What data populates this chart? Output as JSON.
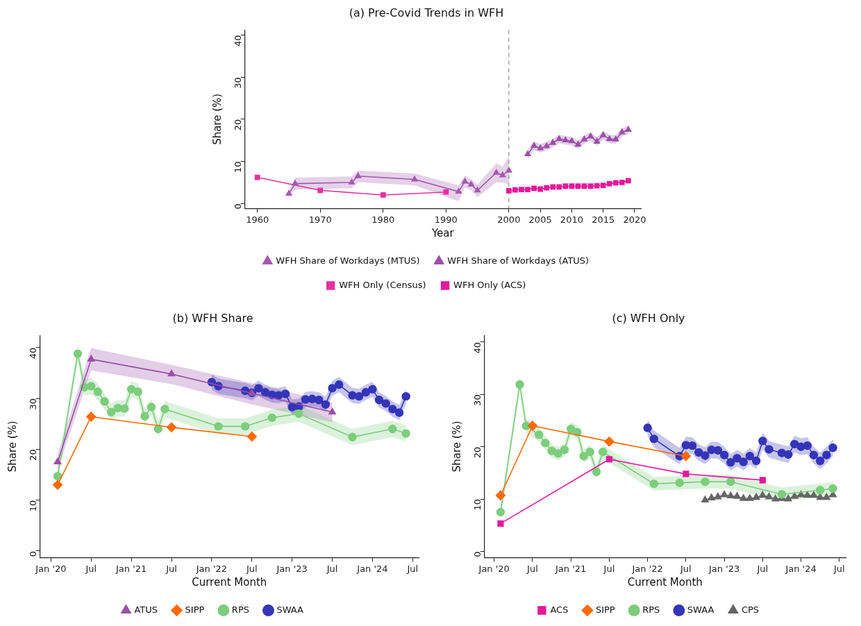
{
  "chart_data": [
    {
      "type": "line",
      "title": "(a) Pre-Covid Trends in WFH",
      "xlabel": "Year",
      "ylabel": "Share (%)",
      "xlim": [
        1958,
        2021
      ],
      "xticks": [
        1960,
        1970,
        1980,
        1990,
        2000,
        2005,
        2010,
        2015,
        2020
      ],
      "ylim": [
        -1.2,
        41.2
      ],
      "yticks": [
        0,
        10,
        20,
        30,
        40
      ],
      "grid": false,
      "legend": "bottom",
      "ref_lines": [
        {
          "axis": "x",
          "value": 2000,
          "color": "#999999",
          "line_style": "dashed"
        }
      ],
      "series": [
        {
          "name": "WFH Share of Workdays (MTUS)",
          "color": "#a35aae",
          "marker": "triangle",
          "x": [
            1965,
            1966,
            1975,
            1976,
            1985,
            1992,
            1993,
            1994,
            1995,
            1998,
            1999,
            2000
          ],
          "values": [
            2.3,
            4.7,
            5.0,
            6.5,
            5.7,
            2.8,
            5.2,
            4.5,
            3.1,
            7.3,
            6.7,
            7.8
          ],
          "lower": [
            1.5,
            3.3,
            3.6,
            5.0,
            4.3,
            0.5,
            3.8,
            3.2,
            1.5,
            5.0,
            5.0,
            4.5
          ],
          "upper": [
            3.1,
            6.1,
            6.4,
            7.8,
            7.1,
            4.3,
            6.6,
            5.8,
            4.5,
            9.5,
            8.7,
            11.2
          ]
        },
        {
          "name": "WFH Share of Workdays (ATUS)",
          "color": "#9b4fa8",
          "marker": "triangle",
          "x": [
            2003,
            2004,
            2005,
            2006,
            2007,
            2008,
            2009,
            2010,
            2011,
            2012,
            2013,
            2014,
            2015,
            2016,
            2017,
            2018,
            2019
          ],
          "values": [
            11.7,
            13.7,
            13.1,
            13.6,
            14.4,
            15.3,
            15.0,
            14.8,
            14.0,
            15.2,
            15.9,
            14.7,
            16.2,
            15.3,
            15.2,
            16.9,
            17.5
          ],
          "lower": [
            10.7,
            12.7,
            12.1,
            12.6,
            13.4,
            14.3,
            14.0,
            13.8,
            13.0,
            14.2,
            14.9,
            13.7,
            15.2,
            14.3,
            14.2,
            15.9,
            16.5
          ],
          "upper": [
            12.7,
            14.7,
            14.1,
            14.6,
            15.4,
            16.3,
            16.0,
            15.8,
            15.0,
            16.2,
            16.9,
            15.7,
            17.2,
            16.3,
            16.2,
            17.9,
            18.5
          ]
        },
        {
          "name": "WFH Only (Census)",
          "color": "#e8309f",
          "marker": "square",
          "x": [
            1960,
            1970,
            1980,
            1990
          ],
          "values": [
            6.2,
            3.1,
            2.0,
            2.7
          ]
        },
        {
          "name": "WFH Only (ACS)",
          "color": "#e3199b",
          "marker": "square",
          "x": [
            2000,
            2001,
            2002,
            2003,
            2004,
            2005,
            2006,
            2007,
            2008,
            2009,
            2010,
            2011,
            2012,
            2013,
            2014,
            2015,
            2016,
            2017,
            2018,
            2019
          ],
          "values": [
            3.0,
            3.2,
            3.3,
            3.3,
            3.6,
            3.4,
            3.7,
            3.9,
            3.9,
            4.1,
            4.1,
            4.1,
            4.1,
            4.1,
            4.2,
            4.3,
            4.7,
            4.9,
            5.0,
            5.4
          ]
        }
      ]
    },
    {
      "type": "line",
      "title": "(b) WFH Share",
      "xlabel": "Current Month",
      "ylabel": "Share (%)",
      "xlim": [
        "2019-11-12",
        "2024-07-28"
      ],
      "xticks": [
        {
          "value": "2020-01",
          "label": "Jan '20"
        },
        {
          "value": "2020-07",
          "label": "Jul"
        },
        {
          "value": "2021-01",
          "label": "Jan '21"
        },
        {
          "value": "2021-07",
          "label": "Jul"
        },
        {
          "value": "2022-01",
          "label": "Jan '22"
        },
        {
          "value": "2022-07",
          "label": "Jul"
        },
        {
          "value": "2023-01",
          "label": "Jan '23"
        },
        {
          "value": "2023-07",
          "label": "Jul"
        },
        {
          "value": "2024-01",
          "label": "Jan '24"
        },
        {
          "value": "2024-07",
          "label": "Jul"
        }
      ],
      "ylim": [
        -1.3,
        42.4
      ],
      "yticks": [
        0,
        10,
        20,
        30,
        40
      ],
      "grid": false,
      "legend": "bottom",
      "series": [
        {
          "name": "ATUS",
          "color": "#9b4fa8",
          "marker": "triangle",
          "x": [
            "2020-02",
            "2020-07",
            "2021-07",
            "2022-07",
            "2023-07"
          ],
          "values": [
            17.5,
            37.7,
            34.8,
            31.0,
            27.3
          ],
          "lower": [
            16.0,
            35.5,
            32.8,
            28.8,
            25.3
          ],
          "upper": [
            19.0,
            39.9,
            36.6,
            33.0,
            29.2
          ]
        },
        {
          "name": "SIPP",
          "color": "#ff6a00",
          "marker": "diamond",
          "x": [
            "2020-02",
            "2020-07",
            "2021-07",
            "2022-07"
          ],
          "values": [
            13.0,
            26.4,
            24.3,
            22.5
          ]
        },
        {
          "name": "RPS",
          "color": "#7ccd7c",
          "marker": "circle",
          "x": [
            "2020-02",
            "2020-05",
            "2020-06",
            "2020-07",
            "2020-08",
            "2020-09",
            "2020-10",
            "2020-11",
            "2020-12",
            "2021-01",
            "2021-02",
            "2021-03",
            "2021-04",
            "2021-05",
            "2021-06",
            "2022-02",
            "2022-06",
            "2022-10",
            "2023-02",
            "2023-10",
            "2024-04",
            "2024-06"
          ],
          "values": [
            14.7,
            38.8,
            32.2,
            32.4,
            31.3,
            29.4,
            27.3,
            28.1,
            28.0,
            31.8,
            31.3,
            26.5,
            28.3,
            24.0,
            27.9,
            24.5,
            24.5,
            26.2,
            27.0,
            22.4,
            24.0,
            23.1
          ],
          "lower": [
            13.1,
            37.2,
            30.6,
            30.8,
            29.7,
            27.8,
            25.7,
            26.5,
            26.4,
            30.2,
            29.7,
            24.9,
            26.7,
            22.4,
            26.3,
            22.9,
            22.9,
            24.6,
            25.4,
            20.8,
            22.4,
            21.5
          ],
          "upper": [
            16.3,
            40.4,
            33.8,
            34.0,
            32.9,
            31.0,
            28.9,
            29.7,
            29.6,
            33.4,
            32.9,
            28.1,
            29.9,
            25.6,
            29.5,
            26.1,
            26.1,
            27.8,
            28.6,
            24.0,
            25.6,
            24.7
          ]
        },
        {
          "name": "SWAA",
          "color": "#3434b8",
          "marker": "circle",
          "x": [
            "2022-01",
            "2022-02",
            "2022-06",
            "2022-07",
            "2022-08",
            "2022-09",
            "2022-10",
            "2022-11",
            "2022-12",
            "2023-01",
            "2023-02",
            "2023-03",
            "2023-04",
            "2023-05",
            "2023-06",
            "2023-07",
            "2023-08",
            "2023-10",
            "2023-11",
            "2023-12",
            "2024-01",
            "2024-02",
            "2024-03",
            "2024-04",
            "2024-05",
            "2024-06"
          ],
          "values": [
            33.2,
            32.4,
            31.5,
            31.1,
            32.0,
            31.2,
            30.7,
            30.6,
            30.9,
            28.3,
            28.4,
            29.8,
            29.9,
            29.7,
            28.8,
            32.0,
            32.7,
            30.6,
            30.4,
            31.2,
            31.8,
            29.7,
            29.0,
            27.9,
            27.2,
            30.4
          ],
          "lower": [
            31.7,
            30.9,
            30.0,
            29.6,
            30.5,
            29.7,
            29.2,
            29.1,
            29.4,
            26.8,
            26.9,
            28.3,
            28.4,
            28.2,
            27.3,
            30.5,
            31.2,
            29.1,
            28.9,
            29.7,
            30.3,
            28.2,
            27.5,
            26.4,
            25.7,
            28.9
          ],
          "upper": [
            34.7,
            33.9,
            33.0,
            32.6,
            33.5,
            32.7,
            32.2,
            32.1,
            32.4,
            29.8,
            29.9,
            31.3,
            31.4,
            31.2,
            30.3,
            33.5,
            34.2,
            32.1,
            31.9,
            32.7,
            33.3,
            31.2,
            30.5,
            29.4,
            28.7,
            31.9
          ]
        }
      ]
    },
    {
      "type": "line",
      "title": "(c) WFH Only",
      "xlabel": "Current Month",
      "ylabel": "Share (%)",
      "xlim": [
        "2019-11-15",
        "2024-07-31"
      ],
      "xticks": [
        {
          "value": "2020-01",
          "label": "Jan '20"
        },
        {
          "value": "2020-07",
          "label": "Jul"
        },
        {
          "value": "2021-01",
          "label": "Jan '21"
        },
        {
          "value": "2021-07",
          "label": "Jul"
        },
        {
          "value": "2022-01",
          "label": "Jan '22"
        },
        {
          "value": "2022-07",
          "label": "Jul"
        },
        {
          "value": "2023-01",
          "label": "Jan '23"
        },
        {
          "value": "2023-07",
          "label": "Jul"
        },
        {
          "value": "2024-01",
          "label": "Jan '24"
        },
        {
          "value": "2024-07",
          "label": "Jul"
        }
      ],
      "ylim": [
        -1.2,
        41.3
      ],
      "yticks": [
        0,
        10,
        20,
        30,
        40
      ],
      "grid": false,
      "legend": "bottom",
      "series": [
        {
          "name": "ACS",
          "color": "#e3199b",
          "marker": "square",
          "x": [
            "2020-02",
            "2021-07",
            "2022-07",
            "2023-07"
          ],
          "values": [
            5.3,
            17.6,
            14.8,
            13.6
          ]
        },
        {
          "name": "SIPP",
          "color": "#ff6a00",
          "marker": "diamond",
          "x": [
            "2020-02",
            "2020-07",
            "2021-07",
            "2022-07"
          ],
          "values": [
            10.7,
            24.0,
            21.0,
            18.2
          ]
        },
        {
          "name": "RPS",
          "color": "#7ccd7c",
          "marker": "circle",
          "x": [
            "2020-02",
            "2020-05",
            "2020-06",
            "2020-08",
            "2020-09",
            "2020-10",
            "2020-11",
            "2020-12",
            "2021-01",
            "2021-02",
            "2021-03",
            "2021-04",
            "2021-05",
            "2021-06",
            "2022-02",
            "2022-06",
            "2022-10",
            "2023-02",
            "2023-10",
            "2024-04",
            "2024-06"
          ],
          "values": [
            7.5,
            31.9,
            24.0,
            22.3,
            20.7,
            19.2,
            18.7,
            19.4,
            23.4,
            22.8,
            18.2,
            19.0,
            15.2,
            19.0,
            12.9,
            13.1,
            13.3,
            13.3,
            10.9,
            11.7,
            12.0
          ],
          "lower": [
            6.2,
            30.6,
            22.7,
            21.0,
            19.4,
            17.9,
            17.4,
            18.1,
            22.1,
            21.5,
            16.9,
            17.7,
            13.9,
            17.7,
            11.6,
            11.8,
            12.0,
            12.0,
            9.6,
            10.4,
            10.7
          ],
          "upper": [
            8.8,
            33.2,
            25.3,
            23.6,
            22.0,
            20.5,
            20.0,
            20.7,
            24.7,
            24.1,
            19.5,
            20.3,
            16.5,
            20.3,
            14.2,
            14.4,
            14.6,
            14.6,
            12.2,
            13.0,
            13.3
          ]
        },
        {
          "name": "SWAA",
          "color": "#3434b8",
          "marker": "circle",
          "x": [
            "2022-01",
            "2022-02",
            "2022-06",
            "2022-07",
            "2022-08",
            "2022-09",
            "2022-10",
            "2022-11",
            "2022-12",
            "2023-01",
            "2023-02",
            "2023-03",
            "2023-04",
            "2023-05",
            "2023-06",
            "2023-07",
            "2023-08",
            "2023-10",
            "2023-11",
            "2023-12",
            "2024-01",
            "2024-02",
            "2024-03",
            "2024-04",
            "2024-05",
            "2024-06"
          ],
          "values": [
            23.6,
            21.5,
            18.2,
            20.3,
            20.2,
            18.9,
            18.3,
            19.4,
            19.3,
            18.4,
            17.0,
            17.8,
            17.1,
            18.2,
            17.3,
            21.1,
            19.5,
            18.8,
            18.5,
            20.5,
            20.0,
            20.2,
            18.4,
            17.3,
            18.4,
            19.8
          ],
          "lower": [
            22.0,
            19.9,
            16.6,
            18.7,
            18.6,
            17.3,
            16.7,
            17.8,
            17.7,
            16.8,
            15.4,
            16.2,
            15.5,
            16.6,
            15.7,
            19.5,
            17.9,
            17.2,
            16.9,
            18.9,
            18.4,
            18.6,
            16.8,
            15.7,
            16.8,
            18.2
          ],
          "upper": [
            25.2,
            23.1,
            19.8,
            21.9,
            21.8,
            20.5,
            19.9,
            21.0,
            20.9,
            20.0,
            18.6,
            19.4,
            18.7,
            19.8,
            18.9,
            22.7,
            21.1,
            20.4,
            20.1,
            22.1,
            21.6,
            21.8,
            20.0,
            18.9,
            20.0,
            21.4
          ]
        },
        {
          "name": "CPS",
          "color": "#666666",
          "marker": "triangle",
          "x": [
            "2022-10",
            "2022-11",
            "2022-12",
            "2023-01",
            "2023-02",
            "2023-03",
            "2023-04",
            "2023-05",
            "2023-06",
            "2023-07",
            "2023-08",
            "2023-09",
            "2023-10",
            "2023-11",
            "2023-12",
            "2024-01",
            "2024-02",
            "2024-03",
            "2024-04",
            "2024-05",
            "2024-06"
          ],
          "values": [
            9.8,
            10.2,
            10.4,
            10.8,
            10.6,
            10.5,
            10.1,
            10.1,
            10.3,
            10.7,
            10.4,
            10.0,
            10.1,
            10.0,
            10.5,
            10.8,
            10.7,
            10.7,
            10.3,
            10.3,
            10.8
          ]
        }
      ]
    }
  ]
}
